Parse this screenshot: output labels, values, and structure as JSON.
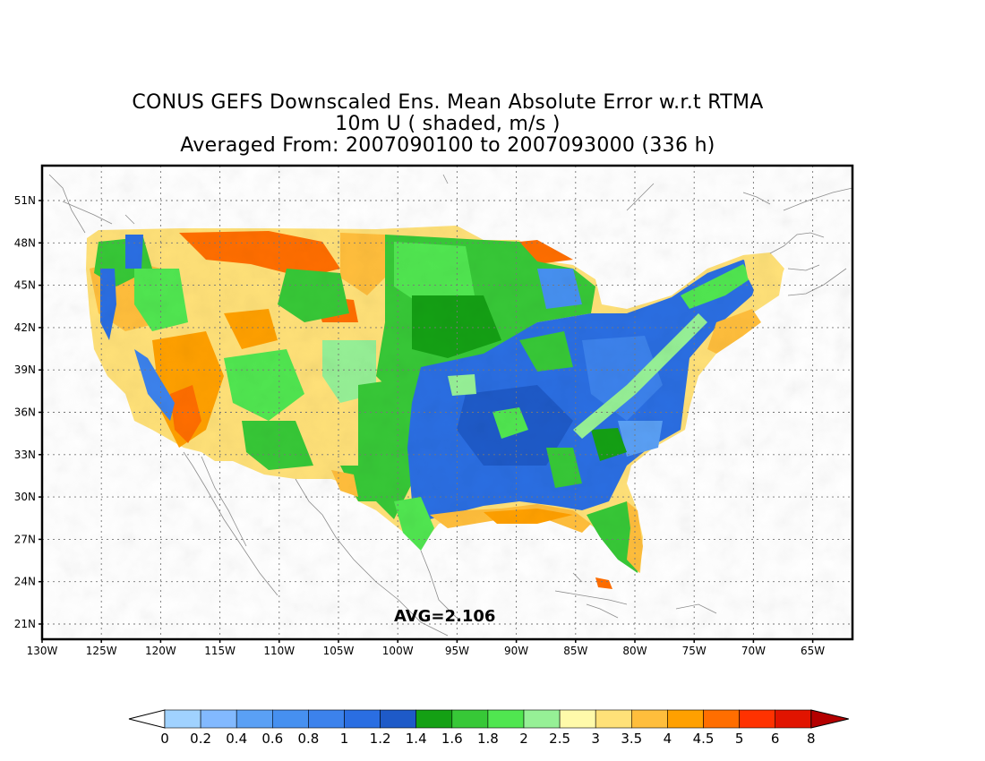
{
  "titles": {
    "line1": "CONUS GEFS Downscaled Ens. Mean Absolute Error w.r.t RTMA",
    "line2": "10m U ( shaded, m/s )",
    "line3": "Averaged From: 2007090100 to 2007093000 (336 h)"
  },
  "annotation": "AVG=2.106",
  "lat_labels": [
    "51N",
    "48N",
    "45N",
    "42N",
    "39N",
    "36N",
    "33N",
    "30N",
    "27N",
    "24N",
    "21N"
  ],
  "lon_labels": [
    "130W",
    "125W",
    "120W",
    "115W",
    "110W",
    "105W",
    "100W",
    "95W",
    "90W",
    "85W",
    "80W",
    "75W",
    "70W",
    "65W"
  ],
  "colorbar": {
    "labels": [
      "0",
      "0.2",
      "0.4",
      "0.6",
      "0.8",
      "1",
      "1.2",
      "1.4",
      "1.6",
      "1.8",
      "2",
      "2.5",
      "3",
      "3.5",
      "4",
      "4.5",
      "5",
      "6",
      "8"
    ],
    "under_color": "#ffffff",
    "over_color": "#b40000",
    "colors": [
      "#a0d2ff",
      "#82b9ff",
      "#5aa0f5",
      "#4690f0",
      "#3c82ec",
      "#2a6ee2",
      "#1e5ac8",
      "#14a014",
      "#37c837",
      "#50e650",
      "#96f096",
      "#fffaaa",
      "#ffe178",
      "#ffbe3c",
      "#ffa000",
      "#ff6e00",
      "#ff3200",
      "#e11400"
    ]
  },
  "regions": [
    {
      "name": "blue-southeast",
      "color": "#2a6ee2"
    },
    {
      "name": "green-plains",
      "color": "#37c837"
    },
    {
      "name": "yellow-west",
      "color": "#ffe178"
    },
    {
      "name": "orange-rockies",
      "color": "#ff6e00"
    }
  ]
}
